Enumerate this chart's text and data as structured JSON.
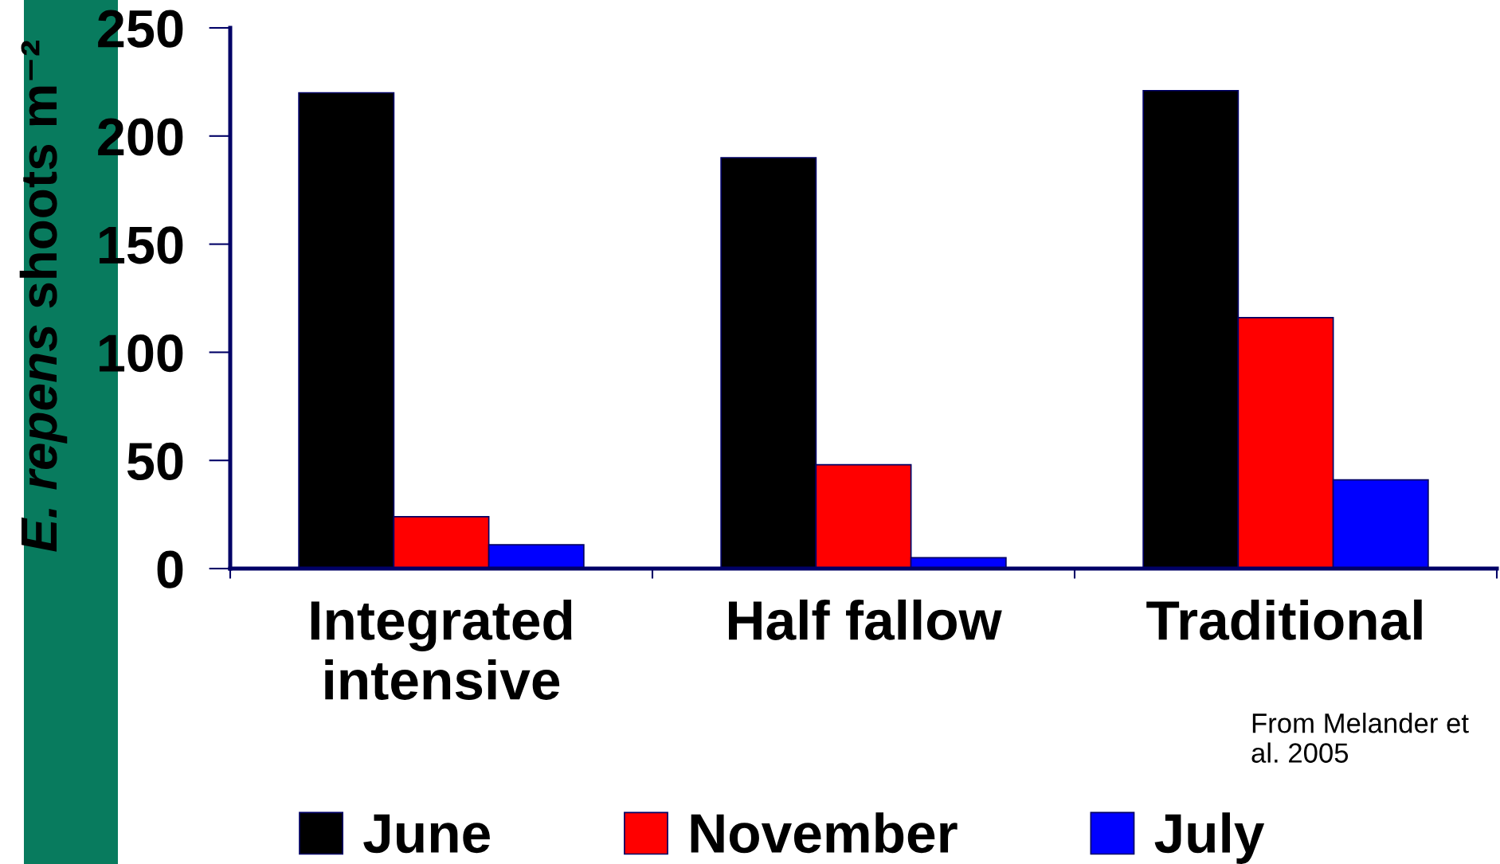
{
  "chart_data": {
    "type": "bar",
    "ylabel": "E. repens shoots m⁻²",
    "categories": [
      "Integrated intensive",
      "Half fallow",
      "Traditional"
    ],
    "series": [
      {
        "name": "June",
        "color": "#000000",
        "values": [
          220,
          190,
          221
        ]
      },
      {
        "name": "November",
        "color": "#ff0000",
        "values": [
          24,
          48,
          116
        ]
      },
      {
        "name": "July",
        "color": "#0000ff",
        "values": [
          11,
          5,
          41
        ]
      }
    ],
    "ylim": [
      0,
      250
    ],
    "yticks": [
      0,
      50,
      100,
      150,
      200,
      250
    ],
    "legend": "bottom",
    "annotations": [
      "From Melander et al. 2005"
    ]
  }
}
